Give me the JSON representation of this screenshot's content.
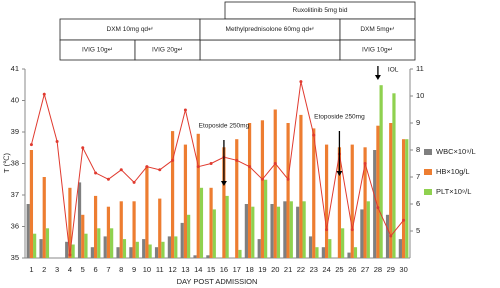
{
  "chart_data": {
    "type": "bar",
    "xlabel": "DAY POST ADMISSION",
    "ylabel": "T (℃)",
    "categories": [
      "1",
      "2",
      "3",
      "4",
      "5",
      "6",
      "7",
      "8",
      "9",
      "10",
      "11",
      "12",
      "13",
      "14",
      "15",
      "16",
      "17",
      "18",
      "19",
      "20",
      "21",
      "22",
      "23",
      "24",
      "25",
      "26",
      "27",
      "28",
      "29",
      "30"
    ],
    "ylim": [
      35,
      41
    ],
    "yticks": [
      35,
      36,
      37,
      38,
      39,
      40,
      41
    ],
    "y2lim": [
      4,
      11
    ],
    "y2ticks": [
      5,
      6,
      7,
      8,
      9,
      10,
      11
    ],
    "series": [
      {
        "name": "WBC×10⁹/L",
        "color": "#7f7f7f",
        "axis": "y2",
        "values": [
          6.0,
          4.7,
          null,
          4.6,
          6.8,
          4.4,
          4.8,
          4.4,
          4.4,
          4.7,
          4.4,
          4.8,
          5.3,
          4.1,
          4.1,
          4.0,
          4.0,
          6.0,
          4.7,
          6.0,
          6.1,
          5.9,
          4.8,
          4.4,
          4.0,
          4.2,
          5.8,
          8.0,
          5.6,
          4.7
        ]
      },
      {
        "name": "HB×10g/L",
        "color": "#ed7d31",
        "axis": "y2",
        "values": [
          8.0,
          7.0,
          null,
          6.6,
          5.6,
          6.3,
          5.9,
          6.1,
          6.1,
          7.4,
          6.2,
          8.7,
          8.2,
          8.6,
          6.6,
          8.1,
          8.4,
          9.0,
          9.1,
          9.5,
          9.0,
          9.3,
          8.8,
          8.2,
          8.1,
          8.2,
          8.1,
          8.9,
          9.0,
          8.4
        ]
      },
      {
        "name": "PLT×10⁹/L",
        "color": "#8fd14f",
        "axis": "y2",
        "values": [
          4.9,
          5.1,
          null,
          4.5,
          4.9,
          5.1,
          5.1,
          4.7,
          4.6,
          4.5,
          4.6,
          4.8,
          5.6,
          6.6,
          5.8,
          6.3,
          4.3,
          5.9,
          6.9,
          5.9,
          6.1,
          6.1,
          4.4,
          4.7,
          5.1,
          4.4,
          6.1,
          10.4,
          10.1,
          8.4
        ]
      }
    ],
    "temperature": {
      "color": "#e03a2f",
      "values": [
        38.6,
        40.2,
        38.7,
        35.1,
        38.5,
        37.7,
        37.5,
        37.8,
        37.4,
        37.9,
        37.8,
        38.1,
        39.7,
        37.9,
        38.0,
        38.2,
        38.1,
        37.9,
        37.5,
        38.0,
        37.5,
        40.6,
        38.9,
        35.9,
        38.3,
        35.9,
        38.0,
        36.6,
        35.7,
        36.2
      ]
    },
    "treatments": [
      "Ruxolitinib 5mg bid",
      "DXM 10mg qd↵",
      "Methylprednisolone 60mg qd↵",
      "DXM 5mg↵",
      "IVIG 10g↵",
      "IVIG 20g↵",
      "IVIG 10g↵"
    ],
    "annotations": [
      "Etoposide 250mg",
      "Etoposide 250mg",
      "IOL"
    ]
  }
}
